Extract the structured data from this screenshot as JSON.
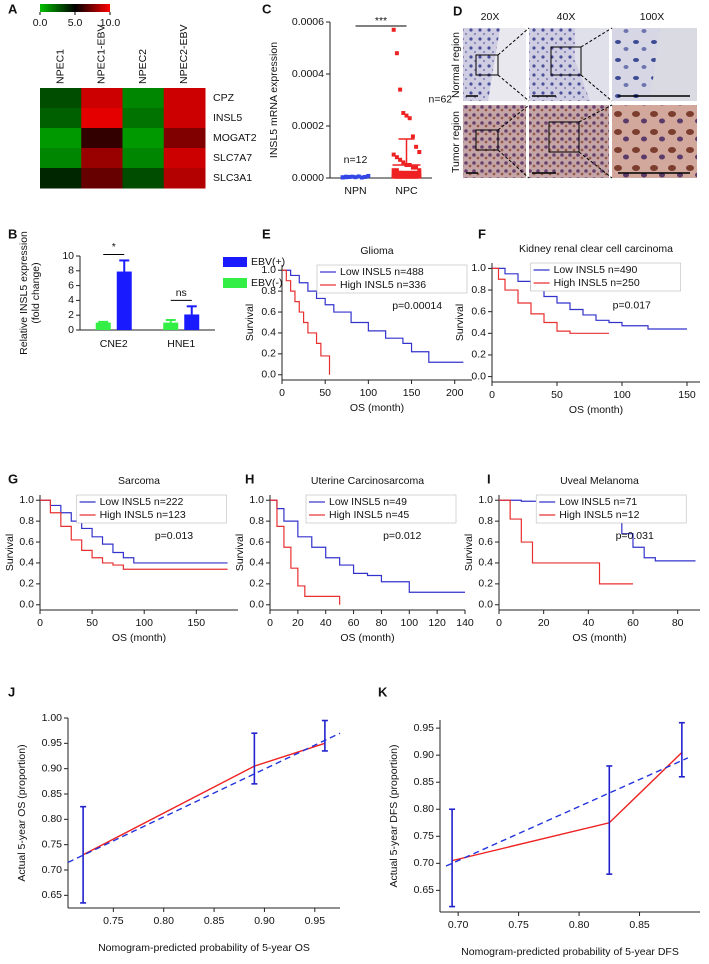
{
  "chart_data": [
    {
      "type": "heatmap",
      "label": "A",
      "columns": [
        "NPEC1",
        "NPEC1-EBV",
        "NPEC2",
        "NPEC2-EBV"
      ],
      "rows": [
        "CPZ",
        "INSL5",
        "MOGAT2",
        "SLC7A7",
        "SLC3A1"
      ],
      "values": [
        [
          3,
          9,
          1.5,
          9
        ],
        [
          2.5,
          9.5,
          2,
          9
        ],
        [
          1,
          6,
          1,
          7.5
        ],
        [
          1.5,
          8,
          1.5,
          9
        ],
        [
          4,
          7,
          3,
          8.5
        ]
      ],
      "clim": [
        0,
        10
      ],
      "colorscale": [
        "#00c000",
        "#000000",
        "#ff0000"
      ],
      "colorbar_ticks": [
        {
          "value": 0,
          "label": "0.0"
        },
        {
          "value": 5,
          "label": "5.0"
        },
        {
          "value": 10,
          "label": "10.0"
        }
      ]
    },
    {
      "type": "dot",
      "label": "C",
      "ylabel": "INSL5 mRNA expression",
      "ylim": [
        0,
        0.0006
      ],
      "yticks": [
        {
          "value": 0,
          "label": "0.0000"
        },
        {
          "value": 0.0002,
          "label": "0.0002"
        },
        {
          "value": 0.0004,
          "label": "0.0004"
        },
        {
          "value": 0.0006,
          "label": "0.0006"
        }
      ],
      "annotation": "***",
      "series": [
        {
          "name": "NPN",
          "color": "#3347e6",
          "n_label": "n=12",
          "mean": 4e-06,
          "sd": 3e-06,
          "values": [
            2e-06,
            3e-06,
            4e-06,
            5e-06,
            3e-06,
            6e-06,
            2e-06,
            4e-06,
            8e-06,
            3e-06,
            5e-06,
            4e-06
          ]
        },
        {
          "name": "NPC",
          "color": "#ee2222",
          "n_label": "n=62",
          "mean": 5e-05,
          "sd": 0.0001,
          "values": [
            0.00057,
            0.00048,
            0.00034,
            0.00025,
            0.00024,
            0.00023,
            0.00016,
            0.00012,
            0.0001,
            9e-05,
            8e-05,
            7e-05,
            6e-05,
            5e-05,
            5e-05,
            4e-05,
            4e-05,
            3e-05,
            3e-05,
            3e-05,
            2e-05,
            2e-05,
            2e-05,
            2e-05,
            2e-05,
            2e-05,
            2e-05,
            2e-05,
            2e-05,
            2e-05,
            1e-05,
            1e-05,
            1e-05,
            1e-05,
            1e-05,
            1e-05,
            1e-05,
            1e-05,
            1e-05,
            1e-05,
            1e-05,
            1e-05,
            1e-05,
            1e-05,
            1e-05,
            1e-05,
            5e-06,
            5e-06,
            5e-06,
            5e-06,
            5e-06,
            5e-06,
            5e-06,
            5e-06,
            5e-06,
            5e-06,
            5e-06,
            5e-06,
            5e-06,
            5e-06,
            5e-06,
            5e-06
          ]
        }
      ]
    },
    {
      "type": "bar",
      "label": "B",
      "ylabel": [
        "Relative INSL5 expression",
        "(fold change)"
      ],
      "categories": [
        "CNE2",
        "HNE1"
      ],
      "ylim": [
        0,
        10
      ],
      "yticks": [
        0,
        2,
        4,
        6,
        8,
        10
      ],
      "annotations": [
        "*",
        "ns"
      ],
      "series": [
        {
          "name": "EBV(+)",
          "color": "#1a1aff",
          "values": [
            7.9,
            2.1
          ],
          "errors": [
            1.5,
            1.1
          ]
        },
        {
          "name": "EBV(-)",
          "color": "#33ee44",
          "values": [
            1.0,
            1.0
          ],
          "errors": [
            0.1,
            0.35
          ]
        }
      ]
    },
    {
      "type": "survival",
      "label": "E",
      "title": "Glioma",
      "xlabel": "OS (month)",
      "ylabel": "Survival",
      "annotation": "p=0.00014",
      "xlim": [
        0,
        220
      ],
      "xticks": [
        0,
        50,
        100,
        150,
        200
      ],
      "ylim": [
        -0.05,
        1.05
      ],
      "yticks": [
        {
          "value": 0,
          "label": "0.0"
        },
        0.2,
        0.4,
        0.6,
        0.8,
        {
          "value": 1,
          "label": "1.0"
        }
      ],
      "series": [
        {
          "name": "Low INSL5 n=488",
          "color": "#3333cc",
          "x": [
            0,
            10,
            20,
            30,
            40,
            50,
            60,
            80,
            100,
            120,
            140,
            150,
            170,
            190,
            210
          ],
          "values": [
            1,
            0.95,
            0.88,
            0.8,
            0.73,
            0.67,
            0.6,
            0.5,
            0.42,
            0.35,
            0.3,
            0.22,
            0.12,
            0.12,
            0.12
          ]
        },
        {
          "name": "High INSL5 n=336",
          "color": "#e83030",
          "x": [
            0,
            5,
            10,
            15,
            20,
            25,
            30,
            40,
            45,
            50,
            55
          ],
          "values": [
            1,
            0.9,
            0.8,
            0.7,
            0.6,
            0.5,
            0.4,
            0.3,
            0.18,
            0.18,
            0
          ]
        }
      ]
    },
    {
      "type": "survival",
      "label": "F",
      "title": "Kidney renal clear cell carcinoma",
      "xlabel": "OS (month)",
      "ylabel": "Survival",
      "annotation": "p=0.017",
      "xlim": [
        0,
        160
      ],
      "xticks": [
        0,
        50,
        100,
        150
      ],
      "ylim": [
        -0.05,
        1.05
      ],
      "yticks": [
        {
          "value": 0,
          "label": "0.0"
        },
        0.2,
        0.4,
        0.6,
        0.8,
        {
          "value": 1,
          "label": "1.0"
        }
      ],
      "series": [
        {
          "name": "Low INSL5 n=490",
          "color": "#3333cc",
          "x": [
            0,
            10,
            20,
            30,
            40,
            50,
            60,
            70,
            80,
            90,
            100,
            120,
            150
          ],
          "values": [
            1,
            0.95,
            0.88,
            0.8,
            0.74,
            0.68,
            0.62,
            0.57,
            0.52,
            0.5,
            0.47,
            0.44,
            0.44
          ]
        },
        {
          "name": "High INSL5 n=250",
          "color": "#e83030",
          "x": [
            0,
            5,
            10,
            20,
            30,
            40,
            50,
            60,
            70,
            90
          ],
          "values": [
            1,
            0.9,
            0.8,
            0.68,
            0.58,
            0.5,
            0.42,
            0.4,
            0.4,
            0.4
          ]
        }
      ]
    },
    {
      "type": "survival",
      "label": "G",
      "title": "Sarcoma",
      "xlabel": "OS (month)",
      "ylabel": "Survival",
      "annotation": "p=0.013",
      "xlim": [
        0,
        190
      ],
      "xticks": [
        0,
        50,
        100,
        150
      ],
      "ylim": [
        -0.05,
        1.05
      ],
      "yticks": [
        {
          "value": 0,
          "label": "0.0"
        },
        0.2,
        0.4,
        0.6,
        0.8,
        {
          "value": 1,
          "label": "1.0"
        }
      ],
      "series": [
        {
          "name": "Low INSL5 n=222",
          "color": "#3333cc",
          "x": [
            0,
            10,
            20,
            30,
            40,
            50,
            60,
            70,
            80,
            90,
            100,
            150,
            180
          ],
          "values": [
            1,
            0.95,
            0.88,
            0.8,
            0.73,
            0.65,
            0.58,
            0.5,
            0.45,
            0.4,
            0.4,
            0.4,
            0.4
          ]
        },
        {
          "name": "High INSL5 n=123",
          "color": "#e83030",
          "x": [
            0,
            10,
            20,
            30,
            40,
            50,
            60,
            70,
            80,
            100,
            180
          ],
          "values": [
            1,
            0.88,
            0.75,
            0.62,
            0.52,
            0.45,
            0.4,
            0.38,
            0.34,
            0.34,
            0.34
          ]
        }
      ]
    },
    {
      "type": "survival",
      "label": "H",
      "title": "Uterine Carcinosarcoma",
      "xlabel": "OS (month)",
      "ylabel": "Survival",
      "annotation": "p=0.012",
      "xlim": [
        0,
        140
      ],
      "xticks": [
        0,
        20,
        40,
        60,
        80,
        100,
        120,
        140
      ],
      "ylim": [
        -0.05,
        1.05
      ],
      "yticks": [
        {
          "value": 0,
          "label": "0.0"
        },
        0.2,
        0.4,
        0.6,
        0.8,
        {
          "value": 1,
          "label": "1.0"
        }
      ],
      "series": [
        {
          "name": "Low INSL5 n=49",
          "color": "#3333cc",
          "x": [
            0,
            5,
            10,
            20,
            30,
            40,
            50,
            60,
            70,
            80,
            100,
            110,
            140
          ],
          "values": [
            1,
            0.92,
            0.8,
            0.65,
            0.55,
            0.45,
            0.38,
            0.3,
            0.28,
            0.22,
            0.12,
            0.12,
            0.12
          ]
        },
        {
          "name": "High INSL5 n=45",
          "color": "#e83030",
          "x": [
            0,
            5,
            10,
            15,
            20,
            25,
            35,
            50
          ],
          "values": [
            1,
            0.75,
            0.55,
            0.35,
            0.18,
            0.08,
            0.08,
            0
          ]
        }
      ]
    },
    {
      "type": "survival",
      "label": "I",
      "title": "Uveal Melanoma",
      "xlabel": "OS (month)",
      "ylabel": "Survival",
      "annotation": "p=0.031",
      "xlim": [
        0,
        90
      ],
      "xticks": [
        0,
        20,
        40,
        60,
        80
      ],
      "ylim": [
        -0.05,
        1.05
      ],
      "yticks": [
        {
          "value": 0,
          "label": "0.0"
        },
        0.2,
        0.4,
        0.6,
        0.8,
        {
          "value": 1,
          "label": "1.0"
        }
      ],
      "series": [
        {
          "name": "Low INSL5 n=71",
          "color": "#3333cc",
          "x": [
            0,
            10,
            20,
            30,
            40,
            50,
            55,
            60,
            65,
            70,
            80,
            88
          ],
          "values": [
            1,
            0.99,
            0.97,
            0.93,
            0.88,
            0.8,
            0.68,
            0.55,
            0.45,
            0.42,
            0.42,
            0.42
          ]
        },
        {
          "name": "High INSL5 n=12",
          "color": "#e83030",
          "x": [
            0,
            5,
            10,
            15,
            30,
            40,
            45,
            60
          ],
          "values": [
            1,
            0.82,
            0.6,
            0.4,
            0.4,
            0.4,
            0.2,
            0.2
          ]
        }
      ]
    },
    {
      "type": "calibration",
      "label": "J",
      "xlabel": "Nomogram-predicted probability of 5-year OS",
      "ylabel": "Actual 5-year OS (proportion)",
      "xlim": [
        0.705,
        0.975
      ],
      "xticks": [
        0.75,
        {
          "value": 0.8,
          "label": "0.80"
        },
        0.85,
        {
          "value": 0.9,
          "label": "0.90"
        },
        0.95
      ],
      "ylim": [
        0.625,
        1.0
      ],
      "yticks": [
        0.65,
        {
          "value": 0.7,
          "label": "0.70"
        },
        0.75,
        {
          "value": 0.8,
          "label": "0.80"
        },
        0.85,
        {
          "value": 0.9,
          "label": "0.90"
        },
        0.95,
        {
          "value": 1,
          "label": "1.00"
        }
      ],
      "series": [
        {
          "color": "#ee2222",
          "x": [
            0.72,
            0.89,
            0.96
          ],
          "values": [
            0.73,
            0.905,
            0.95
          ],
          "lower": [
            0.635,
            0.87,
            0.935
          ],
          "upper": [
            0.825,
            0.97,
            0.995
          ],
          "errorbar_color": "#2222cc"
        },
        {
          "color": "#2233dd",
          "dashed": true,
          "x": [
            0.705,
            0.975
          ],
          "values": [
            0.715,
            0.97
          ]
        }
      ]
    },
    {
      "type": "calibration",
      "label": "K",
      "xlabel": "Nomogram-predicted probability of 5-year DFS",
      "ylabel": "Actual 5-year DFS (proportion)",
      "xlim": [
        0.685,
        0.9
      ],
      "xticks": [
        {
          "value": 0.7,
          "label": "0.70"
        },
        0.75,
        {
          "value": 0.8,
          "label": "0.80"
        },
        0.85
      ],
      "ylim": [
        0.61,
        0.965
      ],
      "yticks": [
        0.65,
        {
          "value": 0.7,
          "label": "0.70"
        },
        0.75,
        {
          "value": 0.8,
          "label": "0.80"
        },
        0.85,
        {
          "value": 0.9,
          "label": "0.90"
        },
        0.95
      ],
      "series": [
        {
          "color": "#ee2222",
          "x": [
            0.695,
            0.825,
            0.885
          ],
          "values": [
            0.705,
            0.775,
            0.905
          ],
          "lower": [
            0.62,
            0.68,
            0.86
          ],
          "upper": [
            0.8,
            0.88,
            0.96
          ],
          "errorbar_color": "#2222cc"
        },
        {
          "color": "#2233dd",
          "dashed": true,
          "x": [
            0.69,
            0.89
          ],
          "values": [
            0.695,
            0.895
          ]
        }
      ]
    }
  ],
  "panel_d": {
    "label": "D",
    "columns": [
      "20X",
      "40X",
      "100X"
    ],
    "rows": [
      "Normal region",
      "Tumor region"
    ]
  }
}
